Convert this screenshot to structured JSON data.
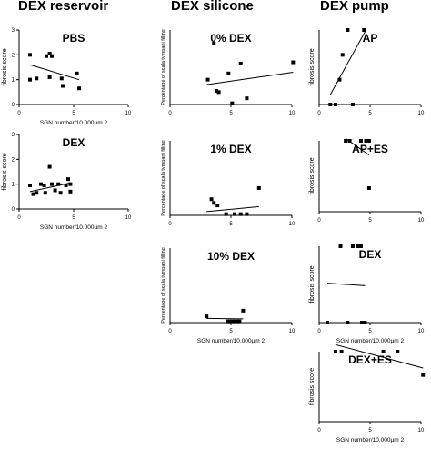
{
  "columns": [
    {
      "title": "DEX reservoir"
    },
    {
      "title": "DEX silicone"
    },
    {
      "title": "DEX pump"
    }
  ],
  "chart_data": [
    {
      "id": "res-pbs",
      "type": "scatter",
      "title": "PBS",
      "column": "DEX reservoir",
      "xlabel": "SGN number/10.000µm 2",
      "ylabel": "fibrosis score",
      "xlim": [
        0,
        10
      ],
      "ylim": [
        0,
        3
      ],
      "xticks": [
        0,
        5,
        10
      ],
      "yticks": [
        0,
        1,
        2,
        3
      ],
      "points": [
        [
          1.0,
          2.0
        ],
        [
          1.0,
          1.0
        ],
        [
          1.6,
          1.05
        ],
        [
          2.5,
          1.95
        ],
        [
          2.8,
          2.05
        ],
        [
          2.8,
          1.1
        ],
        [
          3.0,
          1.95
        ],
        [
          3.9,
          1.05
        ],
        [
          4.0,
          0.75
        ],
        [
          5.3,
          1.25
        ],
        [
          5.5,
          0.65
        ]
      ],
      "fit": [
        [
          1.0,
          1.6
        ],
        [
          5.5,
          1.0
        ]
      ]
    },
    {
      "id": "res-dex",
      "type": "scatter",
      "title": "DEX",
      "column": "DEX reservoir",
      "xlabel": "SGN number/10.000µm 2",
      "ylabel": "fibrosis score",
      "xlim": [
        0,
        10
      ],
      "ylim": [
        0,
        3
      ],
      "xticks": [
        0,
        5,
        10
      ],
      "yticks": [
        0,
        1,
        2,
        3
      ],
      "points": [
        [
          1.0,
          0.95
        ],
        [
          1.3,
          0.6
        ],
        [
          1.6,
          0.65
        ],
        [
          2.0,
          1.0
        ],
        [
          2.3,
          0.95
        ],
        [
          2.4,
          0.65
        ],
        [
          2.8,
          1.7
        ],
        [
          3.0,
          1.0
        ],
        [
          3.3,
          0.75
        ],
        [
          3.6,
          1.0
        ],
        [
          3.8,
          0.65
        ],
        [
          4.3,
          0.95
        ],
        [
          4.5,
          1.2
        ],
        [
          4.7,
          1.0
        ],
        [
          4.7,
          0.7
        ]
      ],
      "fit": [
        [
          1.0,
          0.7
        ],
        [
          4.7,
          1.05
        ]
      ]
    },
    {
      "id": "sil-0",
      "type": "scatter",
      "title": "0% DEX",
      "column": "DEX silicone",
      "xlabel": "",
      "ylabel": "Percentage of scala tympani filling",
      "xlim": [
        0,
        10
      ],
      "ylim": [
        0,
        30
      ],
      "xticks": [
        0,
        5,
        10
      ],
      "yticks": [],
      "points": [
        [
          3.1,
          10.0
        ],
        [
          3.6,
          24.5
        ],
        [
          3.8,
          5.5
        ],
        [
          4.0,
          5.0
        ],
        [
          4.8,
          12.5
        ],
        [
          5.1,
          0.5
        ],
        [
          5.8,
          16.5
        ],
        [
          6.3,
          2.5
        ],
        [
          10.1,
          17.0
        ]
      ],
      "fit": [
        [
          3.0,
          8.0
        ],
        [
          10.1,
          13.0
        ]
      ]
    },
    {
      "id": "sil-1",
      "type": "scatter",
      "title": "1% DEX",
      "column": "DEX silicone",
      "xlabel": "",
      "ylabel": "Percentage of scala tympani filling",
      "xlim": [
        0,
        10
      ],
      "ylim": [
        0,
        30
      ],
      "xticks": [
        0,
        5,
        10
      ],
      "yticks": [],
      "points": [
        [
          3.4,
          6.5
        ],
        [
          3.6,
          5.0
        ],
        [
          3.9,
          4.0
        ],
        [
          4.6,
          0.5
        ],
        [
          5.3,
          0.5
        ],
        [
          5.8,
          0.5
        ],
        [
          6.3,
          0.5
        ],
        [
          7.3,
          11.0
        ]
      ],
      "fit": [
        [
          3.0,
          1.5
        ],
        [
          7.3,
          3.5
        ]
      ]
    },
    {
      "id": "sil-10",
      "type": "scatter",
      "title": "10% DEX",
      "column": "DEX silicone",
      "xlabel": "SGN number/10.000µm 2",
      "ylabel": "Percentage of scala tympani filling",
      "xlim": [
        0,
        10
      ],
      "ylim": [
        0,
        30
      ],
      "xticks": [
        0,
        5,
        10
      ],
      "yticks": [],
      "points": [
        [
          3.0,
          2.5
        ],
        [
          4.7,
          0.5
        ],
        [
          4.9,
          0.5
        ],
        [
          5.1,
          0.5
        ],
        [
          5.3,
          0.5
        ],
        [
          5.5,
          0.5
        ],
        [
          5.7,
          0.5
        ],
        [
          6.0,
          4.8
        ]
      ],
      "fit": [
        [
          3.0,
          1.7
        ],
        [
          6.0,
          1.5
        ]
      ]
    },
    {
      "id": "pump-ap",
      "type": "scatter",
      "title": "AP",
      "column": "DEX pump",
      "xlabel": "",
      "ylabel": "fibrosis score",
      "xlim": [
        0,
        10
      ],
      "ylim": [
        0,
        3
      ],
      "xticks": [
        0,
        5,
        10
      ],
      "yticks": [],
      "points": [
        [
          1.1,
          0.0
        ],
        [
          1.6,
          0.0
        ],
        [
          2.0,
          1.0
        ],
        [
          2.3,
          2.0
        ],
        [
          2.8,
          3.0
        ],
        [
          3.3,
          0.0
        ],
        [
          4.4,
          3.0
        ]
      ],
      "fit": [
        [
          1.1,
          0.4
        ],
        [
          4.6,
          3.0
        ]
      ]
    },
    {
      "id": "pump-ap-es",
      "type": "scatter",
      "title": "AP+ES",
      "column": "DEX pump",
      "xlabel": "",
      "ylabel": "fibrosis score",
      "xlim": [
        0,
        10
      ],
      "ylim": [
        0,
        3
      ],
      "xticks": [
        0,
        5,
        10
      ],
      "yticks": [],
      "points": [
        [
          2.6,
          3.0
        ],
        [
          3.0,
          3.0
        ],
        [
          4.1,
          3.0
        ],
        [
          4.6,
          3.0
        ],
        [
          4.9,
          3.0
        ],
        [
          4.9,
          1.0
        ]
      ],
      "fit": [
        [
          2.6,
          3.1
        ],
        [
          4.9,
          2.4
        ]
      ]
    },
    {
      "id": "pump-dex",
      "type": "scatter",
      "title": "DEX",
      "column": "DEX pump",
      "xlabel": "SGN number/10.000µm 2",
      "ylabel": "fibrosis score",
      "xlim": [
        0,
        10
      ],
      "ylim": [
        0,
        3
      ],
      "xticks": [
        0,
        5,
        10
      ],
      "yticks": [],
      "points": [
        [
          0.8,
          0.0
        ],
        [
          2.1,
          3.0
        ],
        [
          2.8,
          0.0
        ],
        [
          3.3,
          3.0
        ],
        [
          3.8,
          3.0
        ],
        [
          4.1,
          3.0
        ],
        [
          4.2,
          0.0
        ],
        [
          4.5,
          0.0
        ]
      ],
      "fit": [
        [
          0.8,
          1.55
        ],
        [
          4.5,
          1.45
        ]
      ]
    },
    {
      "id": "pump-dex-es",
      "type": "scatter",
      "title": "DEX+ES",
      "column": "DEX pump",
      "xlabel": "SGN number/10.000µm 2",
      "ylabel": "fibrosis score",
      "xlim": [
        0,
        10
      ],
      "ylim": [
        0,
        3
      ],
      "xticks": [
        0,
        5,
        10
      ],
      "yticks": [],
      "points": [
        [
          1.6,
          3.0
        ],
        [
          2.2,
          3.0
        ],
        [
          6.3,
          3.0
        ],
        [
          7.7,
          3.0
        ],
        [
          10.2,
          2.0
        ]
      ],
      "fit": [
        [
          1.6,
          3.3
        ],
        [
          10.2,
          2.3
        ]
      ]
    }
  ]
}
